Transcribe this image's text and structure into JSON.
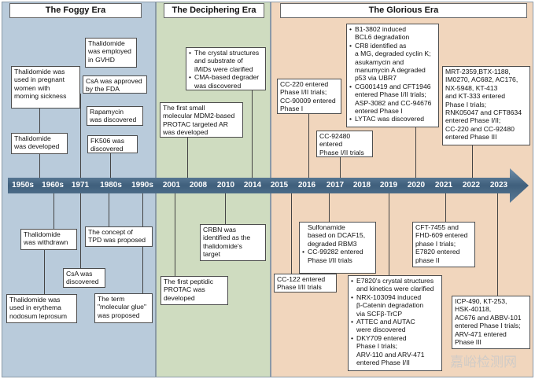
{
  "eras": [
    {
      "title": "The Foggy Era",
      "color": "#b9cbdb"
    },
    {
      "title": "The Deciphering Era",
      "color": "#cfdcc0"
    },
    {
      "title": "The Glorious Era",
      "color": "#f1d6bd"
    }
  ],
  "years": [
    "1950s",
    "1960s",
    "1971",
    "1980s",
    "1990s",
    "2001",
    "2008",
    "2010",
    "2014",
    "2015",
    "2016",
    "2017",
    "2018",
    "2019",
    "2020",
    "2021",
    "2022",
    "2023"
  ],
  "events_above": [
    {
      "lines": [
        "Thalidomide was",
        "used in pregnant",
        "women with",
        "morning sickness"
      ]
    },
    {
      "lines": [
        "Thalidomide",
        "was developed"
      ]
    },
    {
      "lines": [
        "Thalidomide",
        "was employed",
        "in GVHD"
      ]
    },
    {
      "lines": [
        "CsA was approved",
        "by the FDA"
      ]
    },
    {
      "lines": [
        "Rapamycin",
        "was discovered"
      ]
    },
    {
      "lines": [
        "FK506 was",
        "discovered"
      ]
    },
    {
      "lines": [
        "The crystal structures",
        "and substrate of",
        "iMiDs were clarified",
        "CMA-based degrader",
        "was discovered"
      ]
    },
    {
      "lines": [
        "The first small",
        "molecular MDM2-based",
        "PROTAC targeted AR",
        "was developed"
      ]
    },
    {
      "lines": [
        "CC-220 entered",
        "Phase I/II trials;",
        "CC-90009 entered",
        "Phase I"
      ]
    },
    {
      "lines": [
        "CC-92480",
        "entered",
        "Phase I/II trials"
      ]
    },
    {
      "lines": [
        "B1-3802 induced",
        "BCL6 degradation",
        "CR8 identified as",
        "a MG, degraded cyclin K;",
        "asukamycin and",
        "manumycin A degraded",
        "p53 via UBR7",
        "CG001419 and CFT1946",
        "entered Phase I/II trials;",
        "ASP-3082 and CC-94676",
        "entered Phase I",
        "LYTAC was discovered"
      ]
    },
    {
      "lines": [
        "MRT-2359,BTX-1188,",
        "IM0270, AC682, AC176,",
        "NX-5948, KT-413",
        "and KT-333 entered",
        "Phase I trials;",
        "RNK05047 and CFT8634",
        "entered Phase I/II;",
        "CC-220 and CC-92480",
        "entered Phase III"
      ]
    }
  ],
  "events_below": [
    {
      "lines": [
        "Thalidomide",
        "was withdrawn"
      ]
    },
    {
      "lines": [
        "CsA was",
        "discovered"
      ]
    },
    {
      "lines": [
        "Thalidomide was",
        "used in erythema",
        "nodosum leprosum"
      ]
    },
    {
      "lines": [
        "The concept of",
        "TPD was proposed"
      ]
    },
    {
      "lines": [
        "The term",
        "\"molecular glue\"",
        "was proposed"
      ]
    },
    {
      "lines": [
        "CRBN was",
        "identified as the",
        "thalidomide's",
        "target"
      ]
    },
    {
      "lines": [
        "The first peptidic",
        "PROTAC was",
        "developed"
      ]
    },
    {
      "lines": [
        "CC-122 entered",
        "Phase I/II trials"
      ]
    },
    {
      "lines": [
        "Sulfonamide",
        "based on DCAF15,",
        "degraded RBM3",
        "CC-99282 entered",
        "Phase I/II trials"
      ]
    },
    {
      "lines": [
        "CFT-7455 and",
        "FHD-609 entered",
        "phase I trials;",
        "E7820 entered",
        "phase II"
      ]
    },
    {
      "lines": [
        "E7820's crystal structures",
        "and kinetics were clarified",
        "NRX-103094 induced",
        "β-Catenin degradation",
        "via SCFβ-TrCP",
        "ATTEC and AUTAC",
        "were discovered",
        "DKY709 entered",
        "Phase I trials;",
        "ARV-110  and ARV-471",
        "entered Phase I/II"
      ]
    },
    {
      "lines": [
        "ICP-490, KT-253,",
        "HSK-40118,",
        "AC676 and ABBV-101",
        "entered Phase I trials;",
        "ARV-471 entered",
        "Phase III"
      ]
    }
  ],
  "watermark": "嘉峪检测网"
}
